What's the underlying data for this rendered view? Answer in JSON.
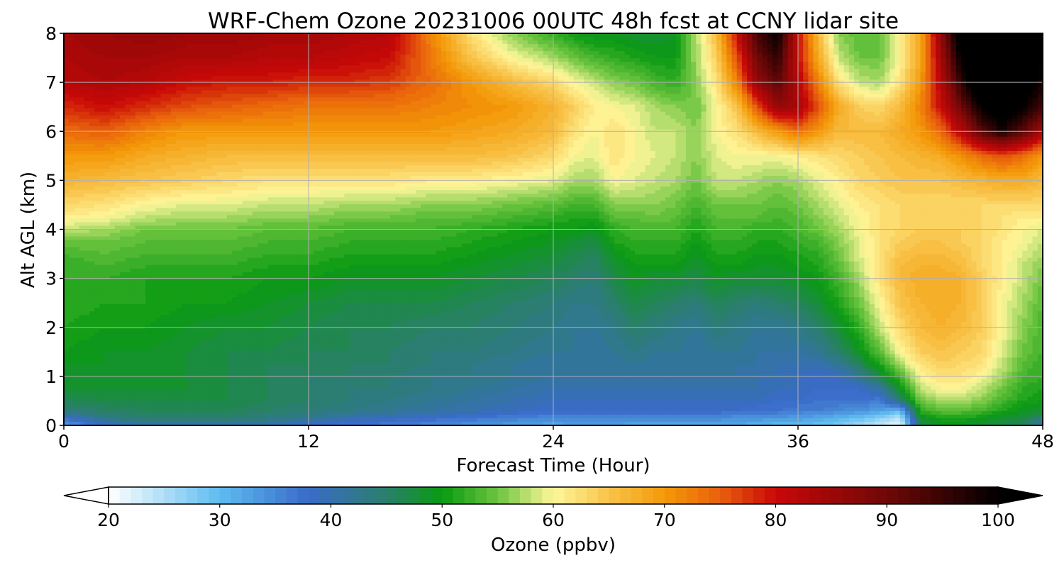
{
  "chart_data": {
    "type": "heatmap",
    "subtype": "filled-contour time-height cross section",
    "title": "WRF-Chem Ozone  20231006 00UTC 48h fcst at CCNY lidar site",
    "xlabel": "Forecast Time (Hour)",
    "ylabel": "Alt AGL (km)",
    "xlim": [
      0,
      48
    ],
    "ylim": [
      0,
      8
    ],
    "xticks": [
      0,
      12,
      24,
      36,
      48
    ],
    "yticks": [
      0,
      1,
      2,
      3,
      4,
      5,
      6,
      7,
      8
    ],
    "grid": true,
    "x": [
      0,
      2,
      4,
      6,
      8,
      10,
      12,
      14,
      16,
      18,
      20,
      22,
      24,
      25,
      26,
      27,
      28,
      29,
      30,
      31,
      32,
      33,
      34,
      35,
      36,
      37,
      38,
      39,
      40,
      41,
      42,
      43,
      44,
      45,
      46,
      47,
      48
    ],
    "y": [
      0,
      0.1,
      0.2,
      0.3,
      0.5,
      0.75,
      1,
      1.25,
      1.5,
      2,
      2.5,
      3,
      3.25,
      3.5,
      3.75,
      4,
      4.25,
      4.5,
      5,
      5.5,
      6,
      6.5,
      7,
      7.5,
      8
    ],
    "values": [
      [
        33,
        38,
        40,
        40,
        40,
        40,
        38,
        37,
        36,
        35,
        34,
        33,
        32,
        33,
        33,
        33,
        32,
        32,
        32,
        32,
        32,
        32,
        31,
        30,
        30,
        29,
        28,
        26,
        24,
        21,
        46,
        49,
        49,
        48,
        47,
        46,
        40
      ],
      [
        36,
        42,
        44,
        44,
        44,
        43,
        41,
        39,
        38,
        37,
        36,
        35,
        34,
        34,
        34,
        34,
        34,
        34,
        34,
        34,
        34,
        33,
        33,
        32,
        32,
        31,
        30,
        28,
        26,
        23,
        48,
        50,
        50,
        49,
        48,
        47,
        43
      ],
      [
        40,
        44,
        45,
        45,
        45,
        44,
        43,
        41,
        40,
        39,
        38,
        37,
        36,
        36,
        36,
        36,
        36,
        36,
        36,
        36,
        36,
        35,
        35,
        35,
        34,
        33,
        32,
        31,
        29,
        26,
        50,
        52,
        52,
        51,
        49,
        48,
        46
      ],
      [
        44,
        45,
        46,
        46,
        46,
        45,
        44,
        43,
        42,
        41,
        40,
        39,
        38,
        38,
        38,
        38,
        38,
        38,
        38,
        38,
        38,
        38,
        37,
        37,
        36,
        36,
        35,
        34,
        33,
        30,
        52,
        54,
        54,
        53,
        51,
        49,
        48
      ],
      [
        46,
        47,
        47,
        47,
        47,
        46,
        45,
        44,
        43,
        42,
        41,
        40,
        39,
        39,
        39,
        39,
        39,
        39,
        39,
        39,
        39,
        39,
        39,
        38,
        38,
        37,
        37,
        37,
        36,
        44,
        55,
        57,
        57,
        56,
        53,
        51,
        50
      ],
      [
        48,
        48,
        48,
        48,
        47,
        46,
        45,
        44,
        44,
        43,
        42,
        41,
        40,
        40,
        40,
        40,
        40,
        40,
        40,
        40,
        40,
        40,
        40,
        39,
        39,
        38,
        38,
        38,
        41,
        49,
        58,
        60,
        60,
        58,
        55,
        52,
        51
      ],
      [
        49,
        48,
        48,
        48,
        47,
        46,
        45,
        45,
        44,
        43,
        43,
        42,
        41,
        41,
        41,
        41,
        41,
        41,
        41,
        41,
        41,
        41,
        40,
        40,
        39,
        38,
        39,
        42,
        47,
        53,
        60,
        62,
        62,
        60,
        57,
        53,
        52
      ],
      [
        49,
        49,
        48,
        48,
        47,
        46,
        46,
        45,
        45,
        44,
        43,
        42,
        41,
        41,
        41,
        41,
        42,
        41,
        41,
        41,
        41,
        41,
        41,
        40,
        40,
        40,
        42,
        46,
        51,
        57,
        62,
        64,
        63,
        62,
        58,
        54,
        52
      ],
      [
        50,
        49,
        49,
        48,
        47,
        47,
        46,
        46,
        45,
        44,
        44,
        43,
        42,
        42,
        41,
        42,
        43,
        42,
        42,
        41,
        42,
        42,
        41,
        41,
        41,
        42,
        45,
        49,
        54,
        60,
        64,
        65,
        64,
        63,
        59,
        55,
        53
      ],
      [
        51,
        50,
        50,
        49,
        48,
        48,
        47,
        46,
        46,
        45,
        45,
        44,
        43,
        42,
        42,
        43,
        45,
        44,
        43,
        42,
        44,
        43,
        42,
        42,
        43,
        45,
        48,
        52,
        58,
        63,
        66,
        67,
        66,
        64,
        60,
        56,
        53
      ],
      [
        52,
        51,
        51,
        50,
        50,
        49,
        48,
        47,
        47,
        47,
        46,
        45,
        44,
        43,
        43,
        45,
        47,
        46,
        45,
        44,
        46,
        45,
        44,
        45,
        46,
        48,
        51,
        55,
        60,
        65,
        67,
        68,
        67,
        64,
        60,
        57,
        54
      ],
      [
        52,
        52,
        51,
        51,
        51,
        50,
        50,
        49,
        49,
        49,
        48,
        47,
        46,
        45,
        44,
        47,
        49,
        48,
        48,
        47,
        49,
        48,
        48,
        48,
        49,
        50,
        53,
        57,
        62,
        66,
        68,
        68,
        67,
        64,
        61,
        58,
        55
      ],
      [
        52,
        53,
        52,
        52,
        52,
        51,
        51,
        50,
        50,
        50,
        49,
        48,
        47,
        46,
        45,
        48,
        50,
        50,
        50,
        48,
        50,
        50,
        49,
        49,
        50,
        51,
        54,
        58,
        62,
        66,
        67,
        67,
        66,
        63,
        61,
        58,
        56
      ],
      [
        53,
        54,
        53,
        53,
        53,
        52,
        52,
        51,
        51,
        51,
        50,
        49,
        48,
        47,
        46,
        49,
        51,
        51,
        51,
        49,
        51,
        51,
        50,
        50,
        51,
        52,
        55,
        59,
        62,
        65,
        66,
        66,
        65,
        63,
        61,
        59,
        57
      ],
      [
        55,
        55,
        54,
        54,
        54,
        53,
        53,
        52,
        52,
        52,
        51,
        50,
        49,
        48,
        47,
        51,
        52,
        52,
        52,
        50,
        52,
        52,
        51,
        51,
        52,
        53,
        56,
        59,
        62,
        64,
        65,
        65,
        64,
        63,
        61,
        60,
        58
      ],
      [
        58,
        57,
        55,
        55,
        55,
        54,
        54,
        53,
        53,
        53,
        52,
        51,
        50,
        50,
        49,
        52,
        53,
        53,
        53,
        51,
        53,
        53,
        52,
        52,
        53,
        55,
        57,
        60,
        62,
        63,
        64,
        64,
        64,
        63,
        62,
        60,
        59
      ],
      [
        61,
        60,
        58,
        57,
        57,
        56,
        56,
        55,
        55,
        54,
        54,
        53,
        52,
        51,
        51,
        54,
        54,
        55,
        54,
        52,
        54,
        54,
        54,
        53,
        54,
        56,
        58,
        60,
        62,
        63,
        63,
        63,
        63,
        63,
        62,
        61,
        61
      ],
      [
        63,
        62,
        60,
        59,
        59,
        58,
        58,
        57,
        57,
        56,
        56,
        55,
        54,
        53,
        53,
        56,
        56,
        56,
        55,
        53,
        55,
        55,
        55,
        54,
        55,
        57,
        59,
        61,
        62,
        63,
        63,
        63,
        63,
        63,
        63,
        63,
        63
      ],
      [
        67,
        66,
        65,
        64,
        63,
        62,
        62,
        62,
        62,
        61,
        61,
        60,
        59,
        57,
        57,
        60,
        59,
        58,
        57,
        55,
        58,
        58,
        57,
        56,
        57,
        59,
        61,
        63,
        64,
        65,
        65,
        65,
        66,
        67,
        68,
        68,
        66
      ],
      [
        70,
        70,
        68,
        67,
        66,
        66,
        66,
        66,
        66,
        66,
        66,
        65,
        63,
        60,
        59,
        62,
        60,
        59,
        58,
        56,
        59,
        60,
        60,
        60,
        61,
        62,
        63,
        64,
        65,
        66,
        67,
        68,
        71,
        74,
        76,
        74,
        70
      ],
      [
        74,
        75,
        72,
        70,
        70,
        70,
        70,
        70,
        70,
        70,
        69,
        68,
        66,
        62,
        60,
        62,
        60,
        58,
        58,
        56,
        60,
        62,
        66,
        70,
        74,
        70,
        66,
        66,
        66,
        68,
        70,
        74,
        82,
        92,
        98,
        92,
        84
      ],
      [
        78,
        80,
        78,
        76,
        75,
        74,
        73,
        73,
        73,
        72,
        71,
        70,
        67,
        64,
        61,
        60,
        59,
        57,
        56,
        55,
        60,
        65,
        76,
        86,
        84,
        76,
        68,
        64,
        63,
        66,
        72,
        80,
        90,
        100,
        104,
        100,
        94
      ],
      [
        82,
        83,
        82,
        80,
        79,
        79,
        78,
        78,
        77,
        74,
        70,
        66,
        63,
        60,
        58,
        56,
        55,
        53,
        52,
        56,
        62,
        72,
        86,
        92,
        82,
        72,
        62,
        58,
        57,
        62,
        70,
        82,
        96,
        108,
        108,
        104,
        98
      ],
      [
        83,
        84,
        84,
        83,
        83,
        82,
        82,
        81,
        80,
        73,
        65,
        60,
        57,
        55,
        53,
        52,
        51,
        50,
        50,
        57,
        64,
        76,
        90,
        96,
        80,
        68,
        58,
        55,
        55,
        60,
        68,
        84,
        100,
        110,
        110,
        106,
        100
      ],
      [
        84,
        85,
        86,
        85,
        85,
        84,
        84,
        83,
        82,
        72,
        62,
        56,
        52,
        50,
        49,
        49,
        48,
        48,
        49,
        57,
        66,
        80,
        94,
        100,
        80,
        66,
        56,
        54,
        55,
        60,
        68,
        86,
        104,
        112,
        112,
        108,
        102
      ]
    ],
    "colorbar": {
      "label": "Ozone  (ppbv)",
      "min": 20,
      "max": 100,
      "ticks": [
        20,
        30,
        40,
        50,
        60,
        70,
        80,
        90,
        100
      ],
      "extend": "both",
      "orientation": "horizontal",
      "colors": [
        {
          "value": 20,
          "color": "#ffffff"
        },
        {
          "value": 30,
          "color": "#5dbcf0"
        },
        {
          "value": 38,
          "color": "#3a6ac9"
        },
        {
          "value": 45,
          "color": "#2a7f6a"
        },
        {
          "value": 50,
          "color": "#0a9a12"
        },
        {
          "value": 55,
          "color": "#6cc440"
        },
        {
          "value": 60,
          "color": "#fff79b"
        },
        {
          "value": 65,
          "color": "#f8c34a"
        },
        {
          "value": 70,
          "color": "#f49a08"
        },
        {
          "value": 75,
          "color": "#e8600c"
        },
        {
          "value": 80,
          "color": "#c80808"
        },
        {
          "value": 90,
          "color": "#700808"
        },
        {
          "value": 100,
          "color": "#000000"
        }
      ]
    }
  }
}
